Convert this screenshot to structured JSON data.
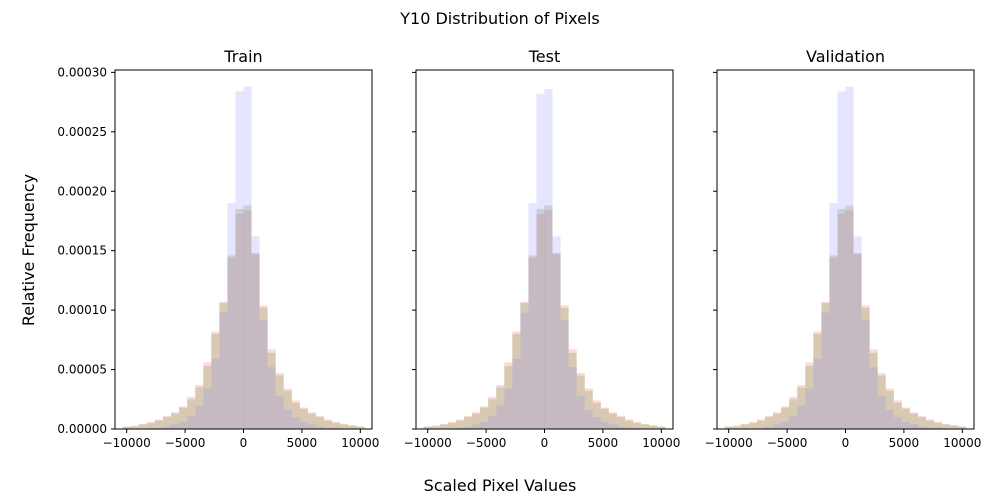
{
  "figure": {
    "title": "Y10 Distribution of Pixels",
    "xlabel": "Scaled Pixel Values",
    "ylabel": "Relative Frequency"
  },
  "colors": {
    "series_1": "#ff7f7f",
    "series_2": "#7fa85a",
    "series_3": "#7f7fff",
    "series_1_alpha": 0.3,
    "series_2_alpha": 0.3,
    "series_3_alpha": 0.2
  },
  "chart_data": [
    {
      "type": "bar",
      "title": "Train",
      "xlim": [
        -11000,
        11000
      ],
      "ylim": [
        0,
        0.000302
      ],
      "xticks": [
        "-10000",
        "-5000",
        "0",
        "5000",
        "10000"
      ],
      "yticks": [
        "0.00000",
        "0.00005",
        "0.00010",
        "0.00015",
        "0.00020",
        "0.00025",
        "0.00030"
      ],
      "grid": false,
      "bin_centers": [
        -10000,
        -9310,
        -8620,
        -7930,
        -7240,
        -6550,
        -5860,
        -5170,
        -4480,
        -3790,
        -3100,
        -2410,
        -1720,
        -1030,
        -340,
        340,
        1030,
        1720,
        2410,
        3100,
        3790,
        4480,
        5170,
        5860,
        6550,
        7240,
        7930,
        8620,
        9310,
        10000
      ],
      "series": [
        {
          "values": [
            2e-06,
            3e-06,
            4e-06,
            6e-06,
            8e-06,
            1.1e-05,
            1.4e-05,
            1.9e-05,
            2.7e-05,
            3.7e-05,
            5.6e-05,
            8.2e-05,
            0.000107,
            0.000144,
            0.000181,
            0.000184,
            0.000147,
            0.000104,
            6.7e-05,
            4.7e-05,
            3.4e-05,
            2.4e-05,
            1.8e-05,
            1.4e-05,
            1.1e-05,
            8e-06,
            6e-06,
            4e-06,
            3e-06,
            2e-06
          ]
        },
        {
          "values": [
            2e-06,
            2e-06,
            4e-06,
            5e-06,
            7e-06,
            1e-05,
            1.3e-05,
            1.8e-05,
            2.5e-05,
            3.5e-05,
            5.3e-05,
            8e-05,
            0.000106,
            0.000146,
            0.000185,
            0.000188,
            0.000148,
            0.000102,
            6.4e-05,
            4.5e-05,
            3.2e-05,
            2.2e-05,
            1.7e-05,
            1.3e-05,
            1e-05,
            7e-06,
            5e-06,
            4e-06,
            3e-06,
            2e-06
          ]
        },
        {
          "values": [
            0,
            0,
            0,
            0,
            1e-06,
            2e-06,
            4e-06,
            6e-06,
            1.1e-05,
            2e-05,
            3.4e-05,
            5.9e-05,
            9.8e-05,
            0.00019,
            0.000284,
            0.000288,
            0.000162,
            9.2e-05,
            5.2e-05,
            2.8e-05,
            1.6e-05,
            1e-05,
            6e-06,
            4e-06,
            2e-06,
            1e-06,
            1e-06,
            0,
            0,
            0
          ]
        }
      ]
    },
    {
      "type": "bar",
      "title": "Test",
      "xlim": [
        -11000,
        11000
      ],
      "ylim": [
        0,
        0.000302
      ],
      "xticks": [
        "-10000",
        "-5000",
        "0",
        "5000",
        "10000"
      ],
      "yticks": [],
      "grid": false,
      "bin_centers": [
        -10000,
        -9310,
        -8620,
        -7930,
        -7240,
        -6550,
        -5860,
        -5170,
        -4480,
        -3790,
        -3100,
        -2410,
        -1720,
        -1030,
        -340,
        340,
        1030,
        1720,
        2410,
        3100,
        3790,
        4480,
        5170,
        5860,
        6550,
        7240,
        7930,
        8620,
        9310,
        10000
      ],
      "series": [
        {
          "values": [
            2e-06,
            3e-06,
            4e-06,
            6e-06,
            8e-06,
            1.1e-05,
            1.4e-05,
            1.9e-05,
            2.7e-05,
            3.7e-05,
            5.6e-05,
            8.2e-05,
            0.000107,
            0.000144,
            0.000181,
            0.000184,
            0.000147,
            0.000104,
            6.7e-05,
            4.7e-05,
            3.4e-05,
            2.4e-05,
            1.8e-05,
            1.4e-05,
            1.1e-05,
            8e-06,
            6e-06,
            4e-06,
            3e-06,
            2e-06
          ]
        },
        {
          "values": [
            2e-06,
            2e-06,
            4e-06,
            5e-06,
            7e-06,
            1e-05,
            1.3e-05,
            1.8e-05,
            2.5e-05,
            3.5e-05,
            5.3e-05,
            8e-05,
            0.000106,
            0.000146,
            0.000185,
            0.000188,
            0.000148,
            0.000102,
            6.4e-05,
            4.5e-05,
            3.2e-05,
            2.2e-05,
            1.7e-05,
            1.3e-05,
            1e-05,
            7e-06,
            5e-06,
            4e-06,
            3e-06,
            2e-06
          ]
        },
        {
          "values": [
            0,
            0,
            0,
            0,
            1e-06,
            2e-06,
            4e-06,
            6e-06,
            1.1e-05,
            2e-05,
            3.4e-05,
            5.9e-05,
            9.8e-05,
            0.00019,
            0.000282,
            0.000286,
            0.000162,
            9.2e-05,
            5.2e-05,
            2.8e-05,
            1.6e-05,
            1e-05,
            6e-06,
            4e-06,
            2e-06,
            1e-06,
            1e-06,
            0,
            0,
            0
          ]
        }
      ]
    },
    {
      "type": "bar",
      "title": "Validation",
      "xlim": [
        -11000,
        11000
      ],
      "ylim": [
        0,
        0.000302
      ],
      "xticks": [
        "-10000",
        "-5000",
        "0",
        "5000",
        "10000"
      ],
      "yticks": [],
      "grid": false,
      "bin_centers": [
        -10000,
        -9310,
        -8620,
        -7930,
        -7240,
        -6550,
        -5860,
        -5170,
        -4480,
        -3790,
        -3100,
        -2410,
        -1720,
        -1030,
        -340,
        340,
        1030,
        1720,
        2410,
        3100,
        3790,
        4480,
        5170,
        5860,
        6550,
        7240,
        7930,
        8620,
        9310,
        10000
      ],
      "series": [
        {
          "values": [
            2e-06,
            3e-06,
            4e-06,
            6e-06,
            8e-06,
            1.1e-05,
            1.4e-05,
            1.9e-05,
            2.7e-05,
            3.7e-05,
            5.6e-05,
            8.2e-05,
            0.000107,
            0.000144,
            0.000181,
            0.000184,
            0.000147,
            0.000104,
            6.7e-05,
            4.7e-05,
            3.4e-05,
            2.4e-05,
            1.8e-05,
            1.4e-05,
            1.1e-05,
            8e-06,
            6e-06,
            4e-06,
            3e-06,
            2e-06
          ]
        },
        {
          "values": [
            2e-06,
            2e-06,
            4e-06,
            5e-06,
            7e-06,
            1e-05,
            1.3e-05,
            1.8e-05,
            2.5e-05,
            3.5e-05,
            5.3e-05,
            8e-05,
            0.000106,
            0.000146,
            0.000185,
            0.000188,
            0.000148,
            0.000102,
            6.4e-05,
            4.5e-05,
            3.2e-05,
            2.2e-05,
            1.7e-05,
            1.3e-05,
            1e-05,
            7e-06,
            5e-06,
            4e-06,
            3e-06,
            2e-06
          ]
        },
        {
          "values": [
            0,
            0,
            0,
            0,
            1e-06,
            2e-06,
            4e-06,
            6e-06,
            1.1e-05,
            2e-05,
            3.4e-05,
            5.9e-05,
            9.8e-05,
            0.00019,
            0.000284,
            0.000288,
            0.000162,
            9.2e-05,
            5.2e-05,
            2.8e-05,
            1.6e-05,
            1e-05,
            6e-06,
            4e-06,
            2e-06,
            1e-06,
            1e-06,
            0,
            0,
            0
          ]
        }
      ]
    }
  ]
}
